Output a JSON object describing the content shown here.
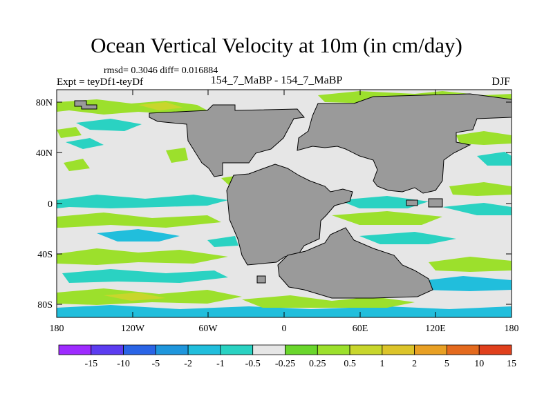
{
  "title": "Ocean Vertical Velocity at 10m (in cm/day)",
  "stats": "rmsd= 0.3046 diff= 0.016884",
  "expt": "Expt = teyDf1-teyDf",
  "runs": "154_7_MaBP - 154_7_MaBP",
  "season": "DJF",
  "axes": {
    "lat_ticks": [
      "80N",
      "40N",
      "0",
      "40S",
      "80S"
    ],
    "lon_ticks": [
      "180",
      "120W",
      "60W",
      "0",
      "60E",
      "120E",
      "180"
    ]
  },
  "colorbar": {
    "labels": [
      "-15",
      "-10",
      "-5",
      "-2",
      "-1",
      "-0.5",
      "-0.25",
      "0.25",
      "0.5",
      "1",
      "2",
      "5",
      "10",
      "15"
    ],
    "colors": [
      "#9e2bff",
      "#5c3cf0",
      "#2a64e6",
      "#1f96dc",
      "#21bedc",
      "#2ad2c2",
      "#e6e6e6",
      "#6ad62c",
      "#9ce02c",
      "#c8d62c",
      "#dcc42a",
      "#e8a024",
      "#e46a1e",
      "#e0401c"
    ]
  },
  "colors": {
    "land": "#9a9a9a",
    "ocean": "#e6e6e6",
    "pos_weak": "#9ce02c",
    "pos_mid": "#c8d62c",
    "neg_weak": "#2ad2c2",
    "neg_mid": "#21bedc"
  }
}
